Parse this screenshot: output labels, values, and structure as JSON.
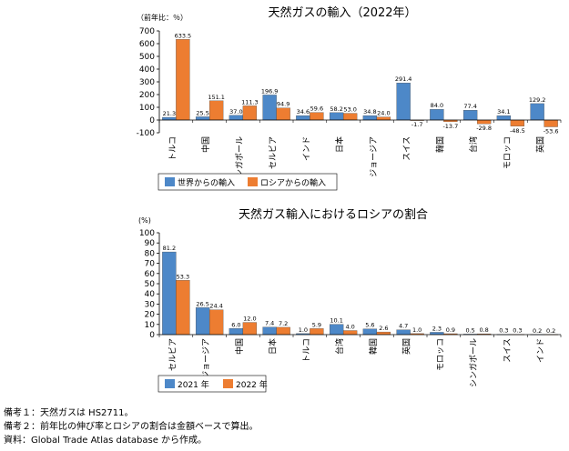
{
  "chart_data": [
    {
      "type": "bar",
      "title": "天然ガスの輸入（2022年）",
      "ylabel": "（前年比：％）",
      "ylim": [
        -100,
        700
      ],
      "yticks": [
        -100,
        0,
        100,
        200,
        300,
        400,
        500,
        600,
        700
      ],
      "grid": false,
      "legend_position": "bottom",
      "categories": [
        "トルコ",
        "中国",
        "シンガポール",
        "セルビア",
        "インド",
        "日本",
        "ジョージア",
        "スイス",
        "韓国",
        "台湾",
        "モロッコ",
        "英国"
      ],
      "series": [
        {
          "name": "世界からの輸入",
          "color": "#4d88c8",
          "values": [
            21.3,
            25.5,
            37.0,
            196.9,
            34.6,
            58.2,
            34.8,
            291.4,
            84.0,
            77.4,
            34.1,
            129.2
          ]
        },
        {
          "name": "ロシアからの輸入",
          "color": "#ed7d31",
          "values": [
            633.5,
            151.1,
            111.3,
            94.9,
            59.6,
            53.0,
            24.0,
            -1.7,
            -13.7,
            -29.8,
            -48.5,
            -53.6
          ]
        }
      ]
    },
    {
      "type": "bar",
      "title": "天然ガス輸入におけるロシアの割合",
      "ylabel": "(%)",
      "ylim": [
        0,
        100
      ],
      "yticks": [
        0,
        10,
        20,
        30,
        40,
        50,
        60,
        70,
        80,
        90,
        100
      ],
      "grid": false,
      "legend_position": "bottom",
      "categories": [
        "セルビア",
        "ジョージア",
        "中国",
        "日本",
        "トルコ",
        "台湾",
        "韓国",
        "英国",
        "モロッコ",
        "シンガポール",
        "スイス",
        "インド"
      ],
      "series": [
        {
          "name": "2021 年",
          "color": "#4d88c8",
          "values": [
            81.2,
            26.5,
            6.0,
            7.4,
            1.0,
            10.1,
            5.6,
            4.7,
            2.3,
            0.5,
            0.3,
            0.2
          ]
        },
        {
          "name": "2022 年",
          "color": "#ed7d31",
          "values": [
            53.3,
            24.4,
            12.0,
            7.2,
            5.9,
            4.0,
            2.6,
            1.0,
            0.9,
            0.8,
            0.3,
            0.2
          ]
        }
      ]
    }
  ],
  "notes": {
    "note1": "備考１：天然ガスは HS2711。",
    "note2": "備考２：前年比の伸び率とロシアの割合は金額ベースで算出。",
    "source": "資料：Global Trade Atlas database から作成。"
  }
}
